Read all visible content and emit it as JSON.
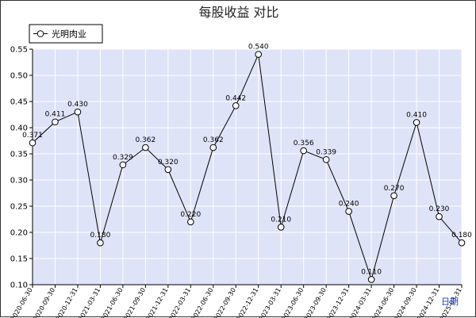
{
  "chart_data": {
    "type": "line",
    "title": "每股收益  对比",
    "xlabel": "",
    "ylabel": "",
    "corner_label": "日期",
    "ylim": [
      0.1,
      0.55
    ],
    "yticks": [
      "0.10",
      "0.15",
      "0.20",
      "0.25",
      "0.30",
      "0.35",
      "0.40",
      "0.45",
      "0.50",
      "0.55"
    ],
    "grid": true,
    "legend": "top-left",
    "categories": [
      "2020-06-30",
      "2020-09-30",
      "2020-12-31",
      "2021-03-31",
      "2021-06-30",
      "2021-09-30",
      "2021-12-31",
      "2022-03-31",
      "2022-06-30",
      "2022-09-30",
      "2022-12-31",
      "2023-03-31",
      "2023-06-30",
      "2023-09-30",
      "2023-12-31",
      "2024-03-31",
      "2024-06-30",
      "2024-09-30",
      "2024-12-31",
      "2025-03-31"
    ],
    "series": [
      {
        "name": "光明肉业",
        "values": [
          0.371,
          0.411,
          0.43,
          0.18,
          0.329,
          0.362,
          0.32,
          0.22,
          0.362,
          0.442,
          0.54,
          0.21,
          0.356,
          0.339,
          0.24,
          0.11,
          0.27,
          0.41,
          0.23,
          0.18
        ],
        "labels": [
          "0.371",
          "0.411",
          "0.430",
          "0.180",
          "0.329",
          "0.362",
          "0.320",
          "0.220",
          "0.362",
          "0.442",
          "0.540",
          "0.210",
          "0.356",
          "0.339",
          "0.240",
          "0.110",
          "0.270",
          "0.410",
          "0.230",
          "0.180"
        ]
      }
    ],
    "colors": {
      "plot_bg": "#dfe3f8",
      "grid": "#ffffff",
      "line": "#000000",
      "marker_fill": "#ffffff",
      "corner_label": "#1f3fbf"
    }
  }
}
